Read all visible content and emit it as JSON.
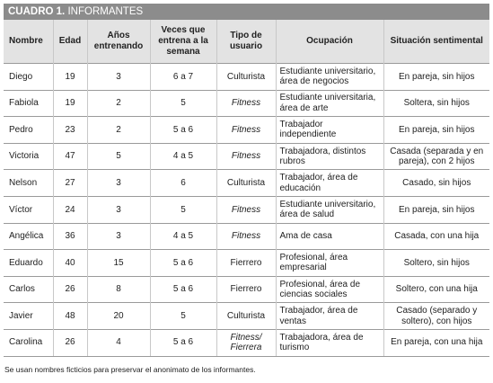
{
  "title": {
    "number": "CUADRO 1.",
    "text": "INFORMANTES"
  },
  "table": {
    "headers": [
      "Nombre",
      "Edad",
      "Años entrenando",
      "Veces que entrena a la semana",
      "Tipo de usuario",
      "Ocupación",
      "Situación sentimental"
    ],
    "rows": [
      [
        "Diego",
        "19",
        "3",
        "6 a 7",
        "Culturista",
        "Estudiante universitario, área de negocios",
        "En pareja, sin hijos"
      ],
      [
        "Fabiola",
        "19",
        "2",
        "5",
        "Fitness",
        "Estudiante universitaria, área de arte",
        "Soltera, sin hijos"
      ],
      [
        "Pedro",
        "23",
        "2",
        "5 a 6",
        "Fitness",
        "Trabajador independiente",
        "En pareja, sin hijos"
      ],
      [
        "Victoria",
        "47",
        "5",
        "4 a 5",
        "Fitness",
        "Trabajadora, distintos rubros",
        "Casada (separada y en pareja), con 2 hijos"
      ],
      [
        "Nelson",
        "27",
        "3",
        "6",
        "Culturista",
        "Trabajador, área de educación",
        "Casado, sin hijos"
      ],
      [
        "Víctor",
        "24",
        "3",
        "5",
        "Fitness",
        "Estudiante universitario, área de salud",
        "En pareja, sin hijos"
      ],
      [
        "Angélica",
        "36",
        "3",
        "4 a 5",
        "Fitness",
        "Ama de casa",
        "Casada, con una hija"
      ],
      [
        "Eduardo",
        "40",
        "15",
        "5 a 6",
        "Fierrero",
        "Profesional, área empresarial",
        "Soltero, sin hijos"
      ],
      [
        "Carlos",
        "26",
        "8",
        "5 a 6",
        "Fierrero",
        "Profesional, área de ciencias sociales",
        "Soltero, con una hija"
      ],
      [
        "Javier",
        "48",
        "20",
        "5",
        "Culturista",
        "Trabajador, área de ventas",
        "Casado (separado y soltero), con hijos"
      ],
      [
        "Carolina",
        "26",
        "4",
        "5 a 6",
        "Fitness/ Fierrera",
        "Trabajadora, área de turismo",
        "En pareja, con una hija"
      ]
    ]
  },
  "footnote": "Se usan nombres ficticios para preservar el anonimato de los informantes."
}
